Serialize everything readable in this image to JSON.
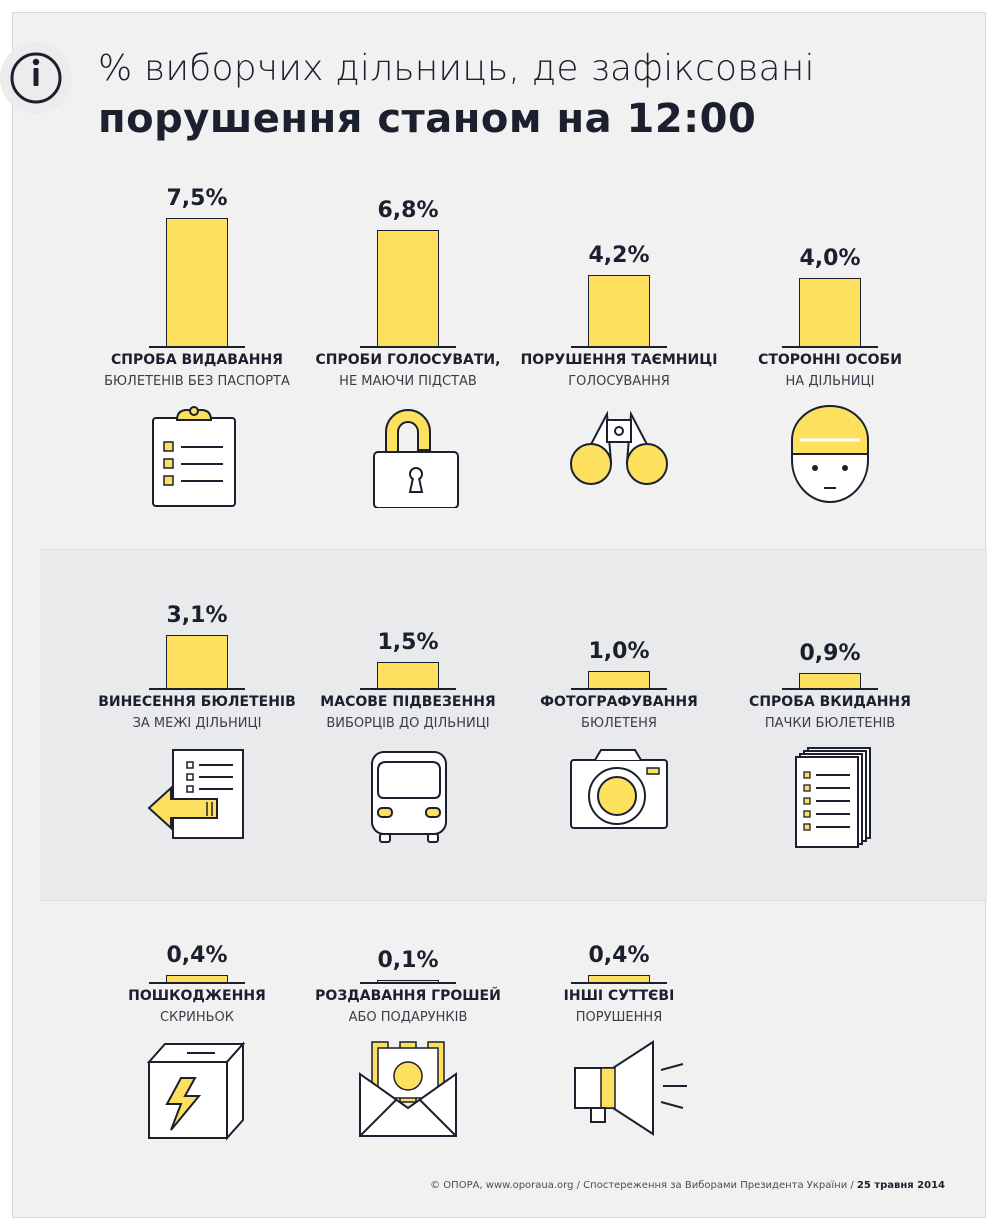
{
  "title": {
    "line1": "% виборчих дільниць, де зафіксовані",
    "line2": "порушення станом на 12:00"
  },
  "chart_data": {
    "type": "bar",
    "title": "% виборчих дільниць, де зафіксовані порушення станом на 12:00",
    "unit": "%",
    "items": [
      {
        "value": 7.5,
        "value_label": "7,5%",
        "label_line1": "СПРОБА ВИДАВАННЯ",
        "label_line2": "БЮЛЕТЕНІВ БЕЗ ПАСПОРТА",
        "icon": "clipboard-icon"
      },
      {
        "value": 6.8,
        "value_label": "6,8%",
        "label_line1": "СПРОБИ ГОЛОСУВАТИ,",
        "label_line2": "НЕ МАЮЧИ ПІДСТАВ",
        "icon": "padlock-icon"
      },
      {
        "value": 4.2,
        "value_label": "4,2%",
        "label_line1": "ПОРУШЕННЯ ТАЄМНИЦІ",
        "label_line2": "ГОЛОСУВАННЯ",
        "icon": "binoculars-icon"
      },
      {
        "value": 4.0,
        "value_label": "4,0%",
        "label_line1": "СТОРОННІ ОСОБИ",
        "label_line2": "НА ДІЛЬНИЦІ",
        "icon": "person-hat-icon"
      },
      {
        "value": 3.1,
        "value_label": "3,1%",
        "label_line1": "ВИНЕСЕННЯ БЮЛЕТЕНІВ",
        "label_line2": "ЗА МЕЖІ ДІЛЬНИЦІ",
        "icon": "document-arrow-icon"
      },
      {
        "value": 1.5,
        "value_label": "1,5%",
        "label_line1": "МАСОВЕ ПІДВЕЗЕННЯ",
        "label_line2": "ВИБОРЦІВ ДО ДІЛЬНИЦІ",
        "icon": "bus-icon"
      },
      {
        "value": 1.0,
        "value_label": "1,0%",
        "label_line1": "ФОТОГРАФУВАННЯ",
        "label_line2": "БЮЛЕТЕНЯ",
        "icon": "camera-icon"
      },
      {
        "value": 0.9,
        "value_label": "0,9%",
        "label_line1": "СПРОБА ВКИДАННЯ",
        "label_line2": "ПАЧКИ БЮЛЕТЕНІВ",
        "icon": "paper-stack-icon"
      },
      {
        "value": 0.4,
        "value_label": "0,4%",
        "label_line1": "ПОШКОДЖЕННЯ",
        "label_line2": "СКРИНЬОК",
        "icon": "broken-box-icon"
      },
      {
        "value": 0.1,
        "value_label": "0,1%",
        "label_line1": "РОЗДАВАННЯ ГРОШЕЙ",
        "label_line2": "АБО ПОДАРУНКІВ",
        "icon": "money-envelope-icon"
      },
      {
        "value": 0.4,
        "value_label": "0,4%",
        "label_line1": "ІНШІ СУТТЄВІ",
        "label_line2": "ПОРУШЕННЯ",
        "icon": "megaphone-icon"
      }
    ]
  },
  "colors": {
    "accent": "#fde15e",
    "ink": "#1b1f2e",
    "background": "#f1f1f1",
    "band": "#e9eaeb"
  },
  "footer": {
    "text": "© ОПОРА, www.oporaua.org / Спостереження за Виборами Президента України / ",
    "date": "25 травня 2014"
  }
}
